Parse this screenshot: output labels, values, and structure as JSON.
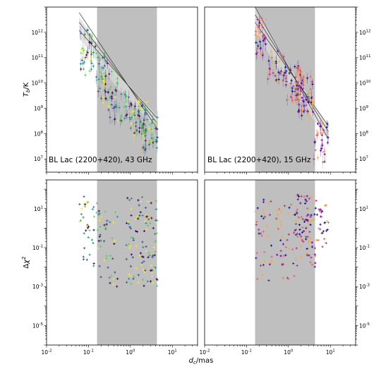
{
  "chart_data": [
    {
      "id": "tb_43ghz",
      "type": "scatter",
      "annotation": "BL Lac (2200+420), 43 GHz",
      "ylabel": "T_b/K",
      "xlabel": "",
      "xscale": "log",
      "yscale": "log",
      "xlim": [
        0.01,
        40
      ],
      "ylim": [
        3000000.0,
        10000000000000.0
      ],
      "shaded_band": [
        0.16,
        4.3
      ],
      "x_tick_labels": [],
      "y_tick_labels": [
        "10^7",
        "10^8",
        "10^9",
        "10^10",
        "10^11",
        "10^12"
      ],
      "y_ticks_side": "left",
      "fit_lines": [
        {
          "x": [
            0.06,
            4.4
          ],
          "y": [
            6000000000000.0,
            150000000.0
          ]
        },
        {
          "x": [
            0.06,
            4.4
          ],
          "y": [
            2500000000000.0,
            250000000.0
          ]
        },
        {
          "x": [
            0.06,
            4.4
          ],
          "y": [
            1200000000000.0,
            400000000.0
          ]
        }
      ],
      "fit_band": {
        "x": [
          0.06,
          0.5,
          4.4
        ],
        "upper": [
          4000000000000.0,
          25000000000.0,
          500000000.0
        ],
        "lower": [
          600000000000.0,
          6000000000.0,
          150000000.0
        ]
      },
      "color_scheme": "viridis",
      "clusters": [
        {
          "xmin": 0.06,
          "xmax": 0.16,
          "ymin": 20000000000.0,
          "ymax": 1500000000000.0,
          "n": 45
        },
        {
          "xmin": 0.15,
          "xmax": 0.3,
          "ymin": 4000000000.0,
          "ymax": 150000000000.0,
          "n": 30
        },
        {
          "xmin": 0.2,
          "xmax": 0.5,
          "ymin": 1000000000.0,
          "ymax": 30000000000.0,
          "n": 25
        },
        {
          "xmin": 0.3,
          "xmax": 1.0,
          "ymin": 300000000.0,
          "ymax": 5000000000.0,
          "n": 35
        },
        {
          "xmin": 1.0,
          "xmax": 2.5,
          "ymin": 80000000.0,
          "ymax": 2000000000.0,
          "n": 60
        },
        {
          "xmin": 2.0,
          "xmax": 4.5,
          "ymin": 20000000.0,
          "ymax": 500000000.0,
          "n": 45
        }
      ]
    },
    {
      "id": "tb_15ghz",
      "type": "scatter",
      "annotation": "BL Lac (2200+420), 15 GHz",
      "ylabel": "",
      "xlabel": "",
      "xscale": "log",
      "yscale": "log",
      "xlim": [
        0.01,
        40
      ],
      "ylim": [
        3000000.0,
        10000000000000.0
      ],
      "shaded_band": [
        0.16,
        4.3
      ],
      "x_tick_labels": [],
      "y_tick_labels": [
        "10^7",
        "10^8",
        "10^9",
        "10^10",
        "10^11",
        "10^12"
      ],
      "y_ticks_side": "right",
      "fit_lines": [
        {
          "x": [
            0.16,
            9.0
          ],
          "y": [
            10000000000000.0,
            60000000.0
          ]
        },
        {
          "x": [
            0.16,
            9.0
          ],
          "y": [
            5000000000000.0,
            120000000.0
          ]
        },
        {
          "x": [
            0.16,
            9.0
          ],
          "y": [
            2500000000000.0,
            200000000.0
          ]
        }
      ],
      "fit_band": {
        "x": [
          0.16,
          1.0,
          9.0
        ],
        "upper": [
          10000000000000.0,
          50000000000.0,
          200000000.0
        ],
        "lower": [
          1000000000000.0,
          10000000000.0,
          50000000.0
        ]
      },
      "color_scheme": "plasma",
      "clusters": [
        {
          "xmin": 0.16,
          "xmax": 0.3,
          "ymin": 100000000000.0,
          "ymax": 4000000000000.0,
          "n": 35
        },
        {
          "xmin": 0.3,
          "xmax": 0.8,
          "ymin": 10000000000.0,
          "ymax": 200000000000.0,
          "n": 30
        },
        {
          "xmin": 0.8,
          "xmax": 2.0,
          "ymin": 2000000000.0,
          "ymax": 50000000000.0,
          "n": 60
        },
        {
          "xmin": 1.5,
          "xmax": 4.0,
          "ymin": 500000000.0,
          "ymax": 20000000000.0,
          "n": 60
        },
        {
          "xmin": 4.0,
          "xmax": 9.0,
          "ymin": 7000000.0,
          "ymax": 300000000.0,
          "n": 30
        }
      ]
    },
    {
      "id": "chi2_43ghz",
      "type": "scatter",
      "ylabel": "Δχ^2",
      "xlabel": "",
      "xscale": "log",
      "yscale": "log",
      "xlim": [
        0.01,
        40
      ],
      "ylim": [
        1e-06,
        300
      ],
      "shaded_band": [
        0.16,
        4.3
      ],
      "x_tick_labels": [
        "10^-2",
        "10^-1",
        "10^0",
        "10^1"
      ],
      "y_tick_labels": [
        "10^-5",
        "10^-3",
        "10^-1",
        "10^1"
      ],
      "y_ticks_side": "left",
      "color_scheme": "viridis",
      "clusters": [
        {
          "xmin": 0.06,
          "xmax": 0.16,
          "ymin": 0.01,
          "ymax": 50,
          "n": 35
        },
        {
          "xmin": 0.16,
          "xmax": 0.5,
          "ymin": 0.001,
          "ymax": 20,
          "n": 45
        },
        {
          "xmin": 0.8,
          "xmax": 4.4,
          "ymin": 0.001,
          "ymax": 40,
          "n": 110
        }
      ]
    },
    {
      "id": "chi2_15ghz",
      "type": "scatter",
      "ylabel": "",
      "xlabel": "d_c/mas",
      "xscale": "log",
      "yscale": "log",
      "xlim": [
        0.01,
        40
      ],
      "ylim": [
        1e-06,
        300
      ],
      "shaded_band": [
        0.16,
        4.3
      ],
      "x_tick_labels": [
        "10^-2",
        "10^-1",
        "10^0",
        "10^1"
      ],
      "y_tick_labels": [
        "10^-5",
        "10^-3",
        "10^-1",
        "10^1"
      ],
      "y_ticks_side": "right",
      "color_scheme": "plasma",
      "clusters": [
        {
          "xmin": 0.16,
          "xmax": 0.4,
          "ymin": 0.001,
          "ymax": 30,
          "n": 35
        },
        {
          "xmin": 0.5,
          "xmax": 1.5,
          "ymin": 0.001,
          "ymax": 20,
          "n": 40
        },
        {
          "xmin": 1.5,
          "xmax": 4.4,
          "ymin": 0.01,
          "ymax": 60,
          "n": 90
        },
        {
          "xmin": 4.4,
          "xmax": 9.0,
          "ymin": 0.1,
          "ymax": 30,
          "n": 30
        }
      ]
    }
  ],
  "palettes": {
    "viridis": [
      "#440154",
      "#3b528b",
      "#21918c",
      "#5ec962",
      "#fde725"
    ],
    "plasma": [
      "#0d0887",
      "#6a00a8",
      "#b12a90",
      "#e16462",
      "#fca636"
    ]
  },
  "colors": {
    "shade": "#bfbfbf",
    "fit_band": "#d9d9d9",
    "axes": "#000000"
  }
}
